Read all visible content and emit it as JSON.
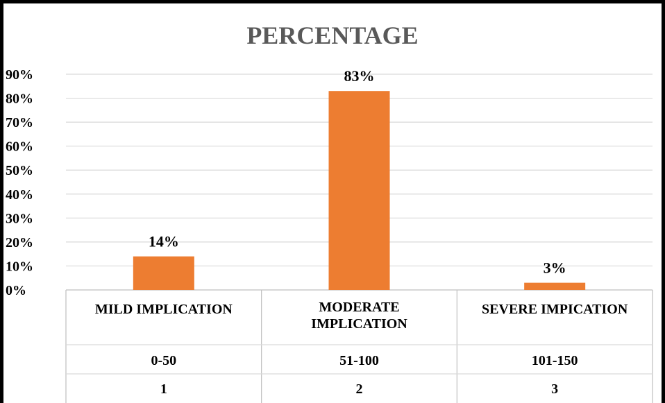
{
  "chart_data": {
    "type": "bar",
    "title": "PERCENTAGE",
    "categories": [
      {
        "levels": [
          "MILD IMPLICATION",
          "0-50",
          "1"
        ]
      },
      {
        "levels": [
          "MODERATE IMPLICATION",
          "51-100",
          "2"
        ]
      },
      {
        "levels": [
          "SEVERE IMPICATION",
          "101-150",
          "3"
        ]
      }
    ],
    "values": [
      14,
      83,
      3
    ],
    "data_labels": [
      "14%",
      "83%",
      "3%"
    ],
    "y_ticks": [
      "0%",
      "10%",
      "20%",
      "30%",
      "40%",
      "50%",
      "60%",
      "70%",
      "80%",
      "90%"
    ],
    "ylim": [
      0,
      90
    ],
    "grid": true,
    "bar_color": "#ED7D31",
    "grid_color": "#D9D9D9"
  }
}
